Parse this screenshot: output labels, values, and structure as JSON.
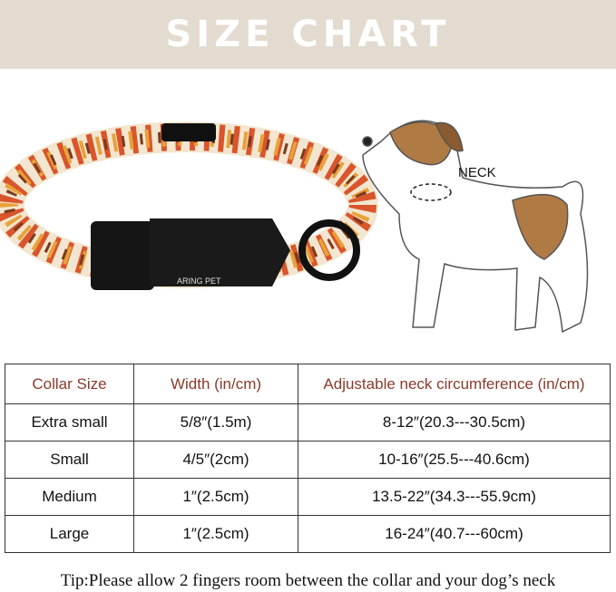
{
  "title": "SIZE CHART",
  "brand_logo": "ARING PET",
  "neck_label": "NECK",
  "table": {
    "headers": [
      "Collar Size",
      "Width (in/cm)",
      "Adjustable neck circumference (in/cm)"
    ],
    "rows": [
      [
        "Extra small",
        "5/8″(1.5m)",
        "8-12″(20.3---30.5cm)"
      ],
      [
        "Small",
        "4/5″(2cm)",
        "10-16″(25.5---40.6cm)"
      ],
      [
        "Medium",
        "1″(2.5cm)",
        "13.5-22″(34.3---55.9cm)"
      ],
      [
        "Large",
        "1″(2.5cm)",
        "16-24″(40.7---60cm)"
      ]
    ]
  },
  "tip": "Tip:Please allow 2 fingers room between the collar and your dog’s neck",
  "colors": {
    "banner": "#e3dbd0",
    "header_text": "#8a3a2a",
    "dog_patch": "#b07a45"
  }
}
